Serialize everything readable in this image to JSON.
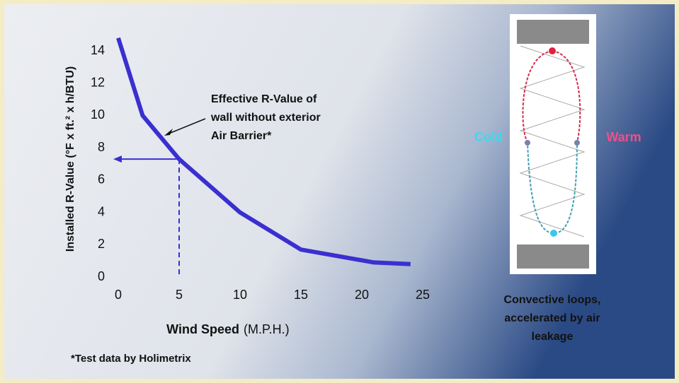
{
  "chart_data": {
    "type": "line",
    "ylabel": "Installed R-Value (°F x ft.² x h/BTU)",
    "xlabel": "Wind Speed",
    "xlabel_units": "(M.P.H.)",
    "x": [
      0,
      2,
      5,
      10,
      15,
      21,
      24
    ],
    "series": [
      {
        "color": "#3a2fd0",
        "values": [
          14.8,
          10,
          7.3,
          4,
          1.7,
          0.9,
          0.8
        ]
      }
    ],
    "xlim": [
      0,
      25
    ],
    "ylim": [
      0,
      14
    ],
    "xticks": [
      0,
      5,
      10,
      15,
      20,
      25
    ],
    "yticks": [
      0,
      2,
      4,
      6,
      8,
      10,
      12,
      14
    ],
    "annotation": [
      "Effective R-Value of",
      "wall without exterior",
      "Air Barrier*"
    ],
    "footnote": "*Test data by Holimetrix"
  },
  "diagram": {
    "cold": "Cold",
    "warm": "Warm",
    "caption": [
      "Convective loops,",
      "accelerated by air",
      "leakage"
    ]
  }
}
